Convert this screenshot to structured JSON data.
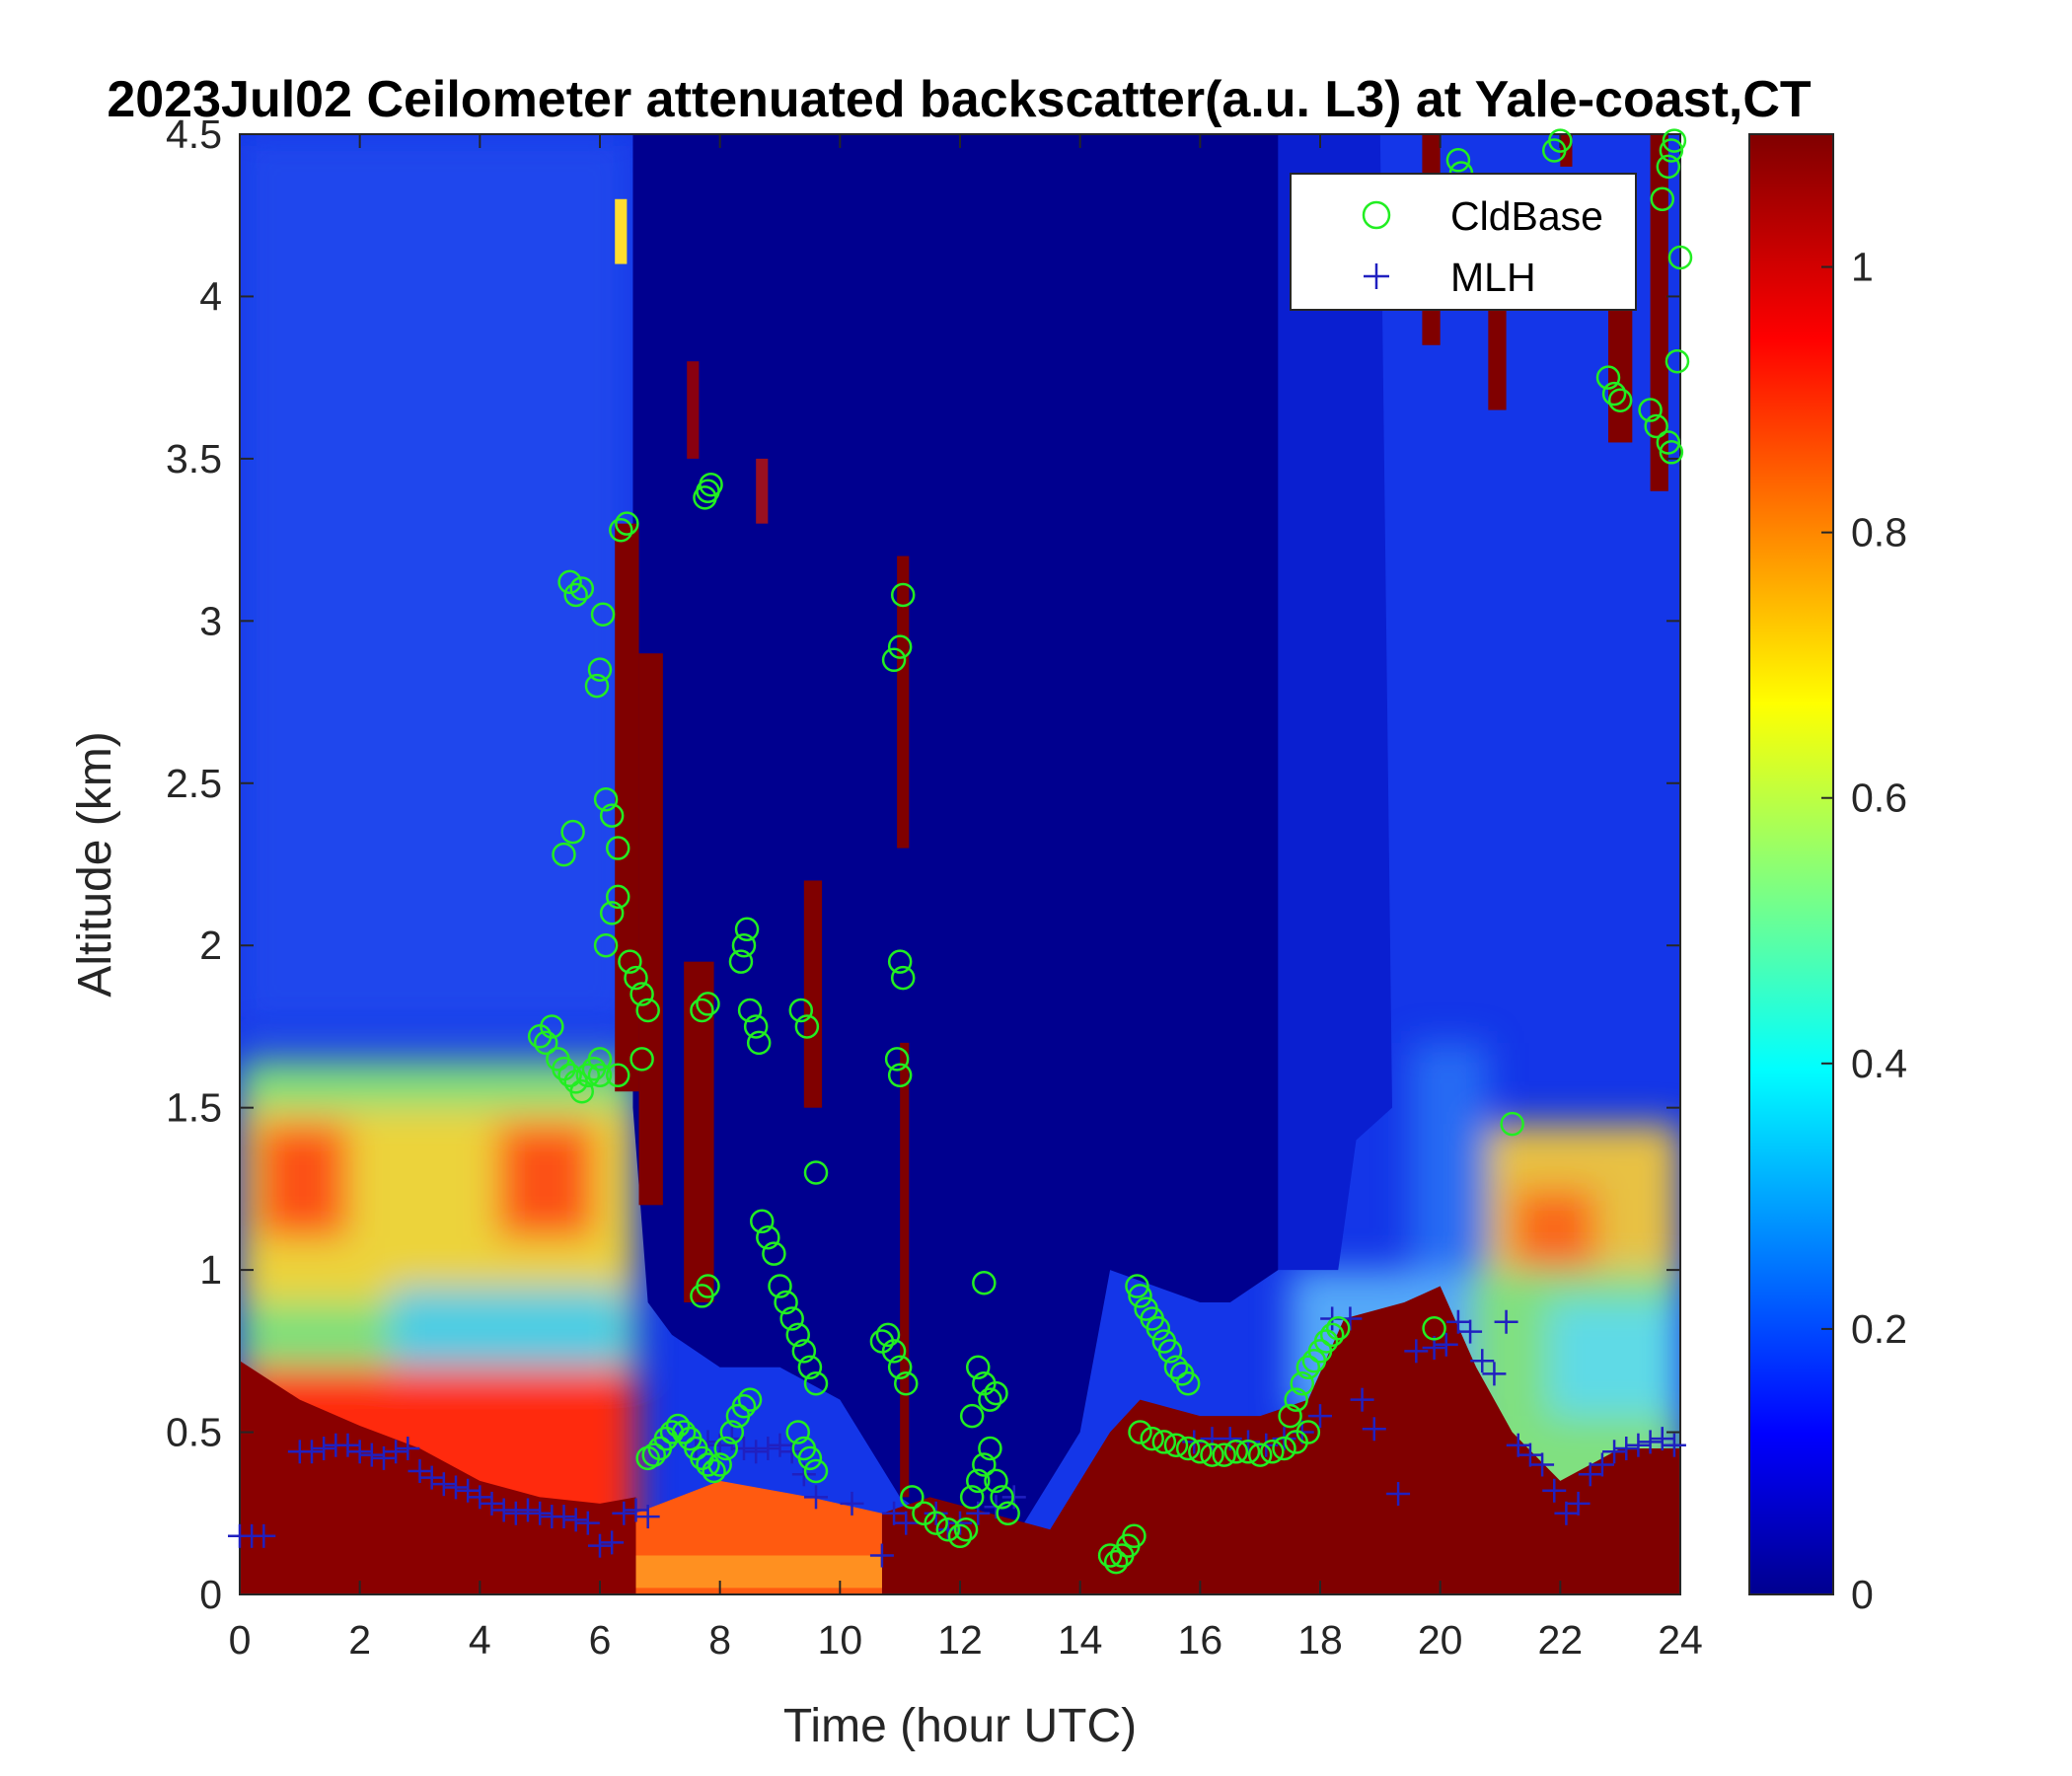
{
  "chart_data": {
    "type": "heatmap",
    "title": "2023Jul02 Ceilometer attenuated backscatter(a.u. L3) at Yale-coast,CT",
    "xlabel": "Time (hour UTC)",
    "ylabel": "Altitude (km)",
    "xlim": [
      0,
      24
    ],
    "ylim": [
      0,
      4.5
    ],
    "xticks": [
      "0",
      "2",
      "4",
      "6",
      "8",
      "10",
      "12",
      "14",
      "16",
      "18",
      "20",
      "22",
      "24"
    ],
    "yticks": [
      "0",
      "0.5",
      "1",
      "1.5",
      "2",
      "2.5",
      "3",
      "3.5",
      "4",
      "4.5"
    ],
    "colorbar": {
      "colormap": "jet",
      "range": [
        0,
        1.1
      ],
      "ticks": [
        "0",
        "0.2",
        "0.4",
        "0.6",
        "0.8",
        "1"
      ]
    },
    "legend": {
      "position": "top-right",
      "entries": [
        "CldBase",
        "MLH"
      ]
    },
    "series": [
      {
        "name": "CldBase",
        "marker": "circle",
        "color": "#22ee22",
        "x": [
          5.0,
          5.1,
          5.2,
          5.3,
          5.4,
          5.5,
          5.6,
          5.7,
          5.8,
          5.9,
          6.0,
          5.4,
          5.55,
          5.7,
          5.5,
          5.6,
          5.95,
          6.0,
          6.05,
          6.1,
          6.2,
          6.3,
          6.1,
          6.2,
          6.3,
          6.35,
          6.45,
          6.5,
          6.6,
          6.7,
          6.8,
          6.0,
          6.3,
          6.7,
          6.8,
          6.9,
          7.0,
          7.1,
          7.2,
          7.3,
          7.4,
          7.5,
          7.6,
          7.7,
          7.8,
          7.9,
          8.0,
          8.1,
          8.2,
          8.3,
          8.4,
          8.5,
          7.7,
          7.8,
          7.75,
          7.8,
          7.85,
          7.7,
          7.8,
          8.35,
          8.4,
          8.45,
          8.5,
          8.6,
          8.65,
          8.7,
          8.8,
          8.9,
          9.0,
          9.1,
          9.2,
          9.3,
          9.4,
          9.5,
          9.6,
          9.35,
          9.45,
          9.6,
          9.3,
          9.4,
          9.5,
          9.6,
          10.7,
          10.8,
          10.9,
          11.0,
          11.1,
          10.9,
          11.0,
          11.05,
          10.95,
          11.0,
          11.0,
          11.05,
          11.2,
          11.4,
          11.6,
          11.8,
          12.0,
          12.1,
          12.2,
          12.3,
          12.4,
          12.5,
          12.6,
          12.7,
          12.8,
          12.3,
          12.4,
          12.5,
          12.2,
          12.4,
          12.6,
          14.5,
          14.6,
          14.7,
          14.8,
          14.9,
          14.95,
          15.0,
          15.1,
          15.2,
          15.3,
          15.4,
          15.5,
          15.6,
          15.7,
          15.8,
          15.0,
          15.2,
          15.4,
          15.6,
          15.8,
          16.0,
          16.2,
          16.4,
          16.6,
          16.8,
          17.0,
          17.2,
          17.4,
          17.6,
          17.8,
          17.5,
          17.6,
          17.7,
          17.8,
          17.9,
          18.0,
          18.1,
          18.2,
          18.3,
          19.9,
          21.2,
          20.3,
          20.35,
          22.0,
          21.9,
          22.8,
          22.9,
          23.0,
          23.5,
          23.6,
          23.7,
          23.8,
          23.85,
          23.9,
          24.0,
          23.95,
          23.8,
          23.85
        ],
        "y": [
          1.72,
          1.7,
          1.75,
          1.65,
          1.62,
          1.6,
          1.58,
          1.55,
          1.6,
          1.62,
          1.6,
          2.28,
          2.35,
          3.1,
          3.12,
          3.08,
          2.8,
          2.85,
          3.02,
          2.45,
          2.4,
          2.3,
          2.0,
          2.1,
          2.15,
          3.28,
          3.3,
          1.95,
          1.9,
          1.85,
          1.8,
          1.65,
          1.6,
          1.65,
          0.42,
          0.43,
          0.45,
          0.48,
          0.5,
          0.52,
          0.5,
          0.48,
          0.45,
          0.42,
          0.4,
          0.38,
          0.4,
          0.45,
          0.5,
          0.55,
          0.58,
          0.6,
          1.8,
          1.82,
          3.38,
          3.4,
          3.42,
          0.92,
          0.95,
          1.95,
          2.0,
          2.05,
          1.8,
          1.75,
          1.7,
          1.15,
          1.1,
          1.05,
          0.95,
          0.9,
          0.85,
          0.8,
          0.75,
          0.7,
          0.65,
          1.8,
          1.75,
          1.3,
          0.5,
          0.45,
          0.42,
          0.38,
          0.78,
          0.8,
          0.75,
          0.7,
          0.65,
          2.88,
          2.92,
          3.08,
          1.65,
          1.6,
          1.95,
          1.9,
          0.3,
          0.25,
          0.22,
          0.2,
          0.18,
          0.2,
          0.3,
          0.35,
          0.4,
          0.45,
          0.35,
          0.3,
          0.25,
          0.7,
          0.65,
          0.6,
          0.55,
          0.96,
          0.62,
          0.12,
          0.1,
          0.12,
          0.15,
          0.18,
          0.95,
          0.92,
          0.88,
          0.85,
          0.82,
          0.78,
          0.75,
          0.7,
          0.68,
          0.65,
          0.5,
          0.48,
          0.47,
          0.46,
          0.45,
          0.44,
          0.43,
          0.43,
          0.44,
          0.44,
          0.43,
          0.44,
          0.45,
          0.47,
          0.5,
          0.55,
          0.6,
          0.65,
          0.7,
          0.72,
          0.75,
          0.78,
          0.8,
          0.82,
          0.82,
          1.45,
          4.42,
          4.38,
          4.48,
          4.45,
          3.75,
          3.7,
          3.68,
          3.65,
          3.6,
          4.3,
          4.4,
          4.45,
          4.48,
          4.12,
          3.8,
          3.55,
          3.52
        ]
      },
      {
        "name": "MLH",
        "marker": "plus",
        "color": "#2020c0",
        "x": [
          0.0,
          0.2,
          0.4,
          1.0,
          1.2,
          1.4,
          1.6,
          1.8,
          2.0,
          2.2,
          2.4,
          2.6,
          2.8,
          3.0,
          3.2,
          3.4,
          3.6,
          3.8,
          4.0,
          4.2,
          4.4,
          4.6,
          4.8,
          5.0,
          5.2,
          5.4,
          5.6,
          5.8,
          6.0,
          6.2,
          6.4,
          6.6,
          6.8,
          7.6,
          7.8,
          8.0,
          8.2,
          8.4,
          8.6,
          8.8,
          9.0,
          9.2,
          9.4,
          9.6,
          10.2,
          10.7,
          10.9,
          11.1,
          11.6,
          11.8,
          12.0,
          12.3,
          12.6,
          12.9,
          15.9,
          16.2,
          16.5,
          16.8,
          17.1,
          17.4,
          17.7,
          18.0,
          18.2,
          18.5,
          18.7,
          18.9,
          19.3,
          19.6,
          19.9,
          20.1,
          20.3,
          20.5,
          20.7,
          20.9,
          21.1,
          21.3,
          21.5,
          21.7,
          21.9,
          22.1,
          22.3,
          22.5,
          22.7,
          22.9,
          23.1,
          23.3,
          23.5,
          23.7,
          23.9
        ],
        "y": [
          0.18,
          0.18,
          0.18,
          0.44,
          0.44,
          0.45,
          0.46,
          0.46,
          0.44,
          0.43,
          0.42,
          0.44,
          0.45,
          0.38,
          0.36,
          0.34,
          0.33,
          0.32,
          0.3,
          0.28,
          0.26,
          0.25,
          0.26,
          0.25,
          0.24,
          0.24,
          0.23,
          0.22,
          0.15,
          0.16,
          0.25,
          0.26,
          0.24,
          0.45,
          0.47,
          0.46,
          0.48,
          0.45,
          0.44,
          0.45,
          0.46,
          0.44,
          0.37,
          0.3,
          0.28,
          0.12,
          0.25,
          0.22,
          0.25,
          0.2,
          0.22,
          0.25,
          0.27,
          0.3,
          0.47,
          0.48,
          0.48,
          0.47,
          0.46,
          0.48,
          0.5,
          0.55,
          0.85,
          0.85,
          0.6,
          0.51,
          0.31,
          0.75,
          0.76,
          0.77,
          0.84,
          0.81,
          0.72,
          0.68,
          0.84,
          0.46,
          0.43,
          0.4,
          0.32,
          0.25,
          0.28,
          0.37,
          0.4,
          0.44,
          0.45,
          0.46,
          0.47,
          0.48,
          0.46
        ]
      }
    ]
  }
}
